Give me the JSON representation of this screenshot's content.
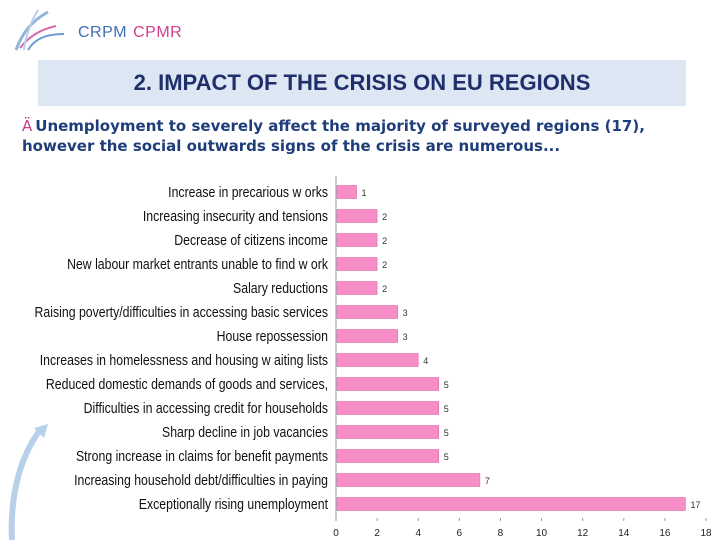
{
  "header": {
    "logo_text_1": "CRPM",
    "logo_text_2": "CPMR",
    "title": "2. IMPACT OF THE CRISIS ON EU REGIONS",
    "subtitle_arrow": "Ä",
    "subtitle": "Unemployment to severely affect the majority of surveyed regions (17), however the social outwards signs of the crisis are numerous..."
  },
  "colors": {
    "bar": "#f78fc6",
    "bar_edge": "#e06aa8",
    "title_bg": "#dde6f3",
    "title_text": "#1f2f6b"
  },
  "chart_data": {
    "type": "bar",
    "orientation": "horizontal",
    "categories": [
      "Increase in precarious w orks",
      "Increasing insecurity and tensions",
      "Decrease of citizens income",
      "New labour market entrants unable to find w ork",
      "Salary reductions",
      "Raising poverty/difficulties in accessing basic services",
      "House repossession",
      "Increases in homelessness and housing w aiting lists",
      "Reduced domestic demands of goods and services,",
      "Difficulties in accessing credit for households",
      "Sharp decline in job vacancies",
      "Strong increase in claims for benefit payments",
      "Increasing household debt/difficulties in paying",
      "Exceptionally rising unemployment"
    ],
    "values": [
      1,
      2,
      2,
      2,
      2,
      3,
      3,
      4,
      5,
      5,
      5,
      5,
      7,
      17
    ],
    "xlim": [
      0,
      18
    ],
    "xticks": [
      "0",
      "2",
      "4",
      "6",
      "8",
      "10",
      "12",
      "14",
      "16",
      "18"
    ],
    "grid": false,
    "title": "",
    "xlabel": "",
    "ylabel": ""
  }
}
